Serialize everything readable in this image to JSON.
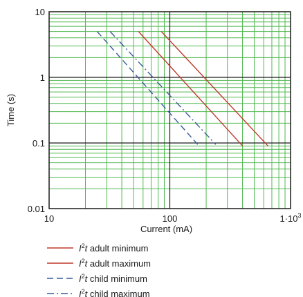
{
  "chart_data": {
    "type": "line",
    "xlabel": "Current (mA)",
    "ylabel": "Time (s)",
    "x_scale": "log",
    "y_scale": "log",
    "xlim": [
      10,
      1000
    ],
    "ylim": [
      0.01,
      10
    ],
    "x_tick_labels": [
      "10",
      "100",
      "1·10"
    ],
    "x_tick_superscript": "3",
    "y_tick_labels": [
      "10",
      "1",
      "0.1",
      "0.01"
    ],
    "grid": true,
    "grid_color": "#4fb84f",
    "major_grid_color": "#1a1a1a",
    "legend_position": "bottom-left",
    "series": [
      {
        "name_prefix": "I",
        "name_sup": "2",
        "name_t": "t",
        "name_rest": " adult minimum",
        "color": "#c0392b",
        "style": "solid",
        "points": [
          [
            55,
            5
          ],
          [
            400,
            0.09
          ]
        ]
      },
      {
        "name_prefix": "I",
        "name_sup": "2",
        "name_t": "t",
        "name_rest": " adult maximum",
        "color": "#c0392b",
        "style": "solid",
        "points": [
          [
            85,
            5
          ],
          [
            650,
            0.09
          ]
        ]
      },
      {
        "name_prefix": "I",
        "name_sup": "2",
        "name_t": "t",
        "name_rest": " child minimum",
        "color": "#3a5a9a",
        "style": "dashed",
        "points": [
          [
            25,
            5
          ],
          [
            170,
            0.095
          ]
        ]
      },
      {
        "name_prefix": "I",
        "name_sup": "2",
        "name_t": "t",
        "name_rest": " child maximum",
        "color": "#3a5a9a",
        "style": "dashdot",
        "points": [
          [
            32,
            5
          ],
          [
            240,
            0.095
          ]
        ]
      }
    ]
  }
}
